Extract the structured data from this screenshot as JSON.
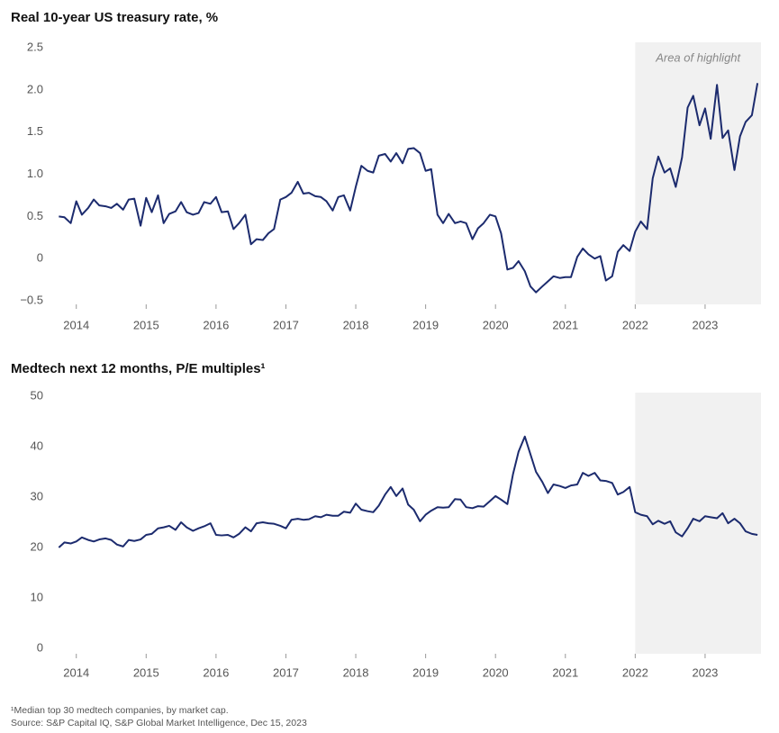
{
  "chart_data": [
    {
      "type": "line",
      "title": "Real 10-year US treasury rate, %",
      "xlim": [
        2013.72,
        2023.8
      ],
      "xticks": [
        2014,
        2015,
        2016,
        2017,
        2018,
        2019,
        2020,
        2021,
        2022,
        2023
      ],
      "ylim": [
        -0.5,
        2.5
      ],
      "yticks": [
        {
          "value": -0.5,
          "label": "−0.5"
        },
        0,
        0.5,
        {
          "value": 1,
          "label": "1.0"
        },
        1.5,
        {
          "value": 2,
          "label": "2.0"
        },
        2.5
      ],
      "grid": false,
      "highlight": {
        "x_from": 2022,
        "label": "Area of highlight"
      },
      "series": [
        {
          "color": "#1c2b6e",
          "x": [
            2013.75,
            2013.83,
            2013.92,
            2014,
            2014.08,
            2014.17,
            2014.25,
            2014.33,
            2014.42,
            2014.5,
            2014.58,
            2014.67,
            2014.75,
            2014.83,
            2014.92,
            2015,
            2015.08,
            2015.17,
            2015.25,
            2015.33,
            2015.42,
            2015.5,
            2015.58,
            2015.67,
            2015.75,
            2015.83,
            2015.92,
            2016,
            2016.08,
            2016.17,
            2016.25,
            2016.33,
            2016.42,
            2016.5,
            2016.58,
            2016.67,
            2016.75,
            2016.83,
            2016.92,
            2017,
            2017.08,
            2017.17,
            2017.25,
            2017.33,
            2017.42,
            2017.5,
            2017.58,
            2017.67,
            2017.75,
            2017.83,
            2017.92,
            2018,
            2018.08,
            2018.17,
            2018.25,
            2018.33,
            2018.42,
            2018.5,
            2018.58,
            2018.67,
            2018.75,
            2018.83,
            2018.92,
            2019,
            2019.08,
            2019.17,
            2019.25,
            2019.33,
            2019.42,
            2019.5,
            2019.58,
            2019.67,
            2019.75,
            2019.83,
            2019.92,
            2020,
            2020.08,
            2020.17,
            2020.25,
            2020.33,
            2020.42,
            2020.5,
            2020.58,
            2020.67,
            2020.75,
            2020.83,
            2020.92,
            2021,
            2021.08,
            2021.17,
            2021.25,
            2021.33,
            2021.42,
            2021.5,
            2021.58,
            2021.67,
            2021.75,
            2021.83,
            2021.92,
            2022,
            2022.08,
            2022.17,
            2022.25,
            2022.33,
            2022.42,
            2022.5,
            2022.58,
            2022.67,
            2022.75,
            2022.83,
            2022.92,
            2023,
            2023.08,
            2023.17,
            2023.25,
            2023.33,
            2023.42,
            2023.5,
            2023.58,
            2023.67,
            2023.75
          ],
          "values": [
            0.5,
            0.49,
            0.42,
            0.68,
            0.52,
            0.6,
            0.7,
            0.63,
            0.62,
            0.6,
            0.65,
            0.58,
            0.7,
            0.71,
            0.39,
            0.72,
            0.55,
            0.75,
            0.42,
            0.53,
            0.56,
            0.67,
            0.55,
            0.52,
            0.54,
            0.67,
            0.65,
            0.73,
            0.55,
            0.56,
            0.35,
            0.42,
            0.52,
            0.17,
            0.23,
            0.22,
            0.3,
            0.35,
            0.7,
            0.73,
            0.78,
            0.91,
            0.77,
            0.78,
            0.74,
            0.73,
            0.68,
            0.57,
            0.73,
            0.75,
            0.57,
            0.85,
            1.1,
            1.04,
            1.02,
            1.22,
            1.24,
            1.15,
            1.25,
            1.13,
            1.3,
            1.31,
            1.25,
            1.04,
            1.06,
            0.52,
            0.42,
            0.53,
            0.42,
            0.44,
            0.42,
            0.23,
            0.36,
            0.42,
            0.52,
            0.5,
            0.3,
            -0.13,
            -0.11,
            -0.03,
            -0.15,
            -0.33,
            -0.4,
            -0.33,
            -0.27,
            -0.21,
            -0.23,
            -0.22,
            -0.22,
            0.02,
            0.12,
            0.05,
            0,
            0.03,
            -0.26,
            -0.21,
            0.08,
            0.16,
            0.09,
            0.32,
            0.44,
            0.35,
            0.95,
            1.21,
            1.02,
            1.07,
            0.85,
            1.2,
            1.79,
            1.93,
            1.58,
            1.78,
            1.42,
            2.06,
            1.43,
            1.52,
            1.05,
            1.45,
            1.62,
            1.7,
            2.08
          ]
        }
      ]
    },
    {
      "type": "line",
      "title": "Medtech next 12 months, P/E multiples¹",
      "xlim": [
        2013.72,
        2023.8
      ],
      "xticks": [
        2014,
        2015,
        2016,
        2017,
        2018,
        2019,
        2020,
        2021,
        2022,
        2023
      ],
      "ylim": [
        0,
        50
      ],
      "yticks": [
        0,
        10,
        20,
        30,
        40,
        50
      ],
      "grid": false,
      "highlight": {
        "x_from": 2022
      },
      "series": [
        {
          "color": "#1c2b6e",
          "x": [
            2013.75,
            2013.83,
            2013.92,
            2014,
            2014.08,
            2014.17,
            2014.25,
            2014.33,
            2014.42,
            2014.5,
            2014.58,
            2014.67,
            2014.75,
            2014.83,
            2014.92,
            2015,
            2015.08,
            2015.17,
            2015.25,
            2015.33,
            2015.42,
            2015.5,
            2015.58,
            2015.67,
            2015.75,
            2015.83,
            2015.92,
            2016,
            2016.08,
            2016.17,
            2016.25,
            2016.33,
            2016.42,
            2016.5,
            2016.58,
            2016.67,
            2016.75,
            2016.83,
            2016.92,
            2017,
            2017.08,
            2017.17,
            2017.25,
            2017.33,
            2017.42,
            2017.5,
            2017.58,
            2017.67,
            2017.75,
            2017.83,
            2017.92,
            2018,
            2018.08,
            2018.17,
            2018.25,
            2018.33,
            2018.42,
            2018.5,
            2018.58,
            2018.67,
            2018.75,
            2018.83,
            2018.92,
            2019,
            2019.08,
            2019.17,
            2019.25,
            2019.33,
            2019.42,
            2019.5,
            2019.58,
            2019.67,
            2019.75,
            2019.83,
            2019.92,
            2020,
            2020.08,
            2020.17,
            2020.25,
            2020.33,
            2020.42,
            2020.5,
            2020.58,
            2020.67,
            2020.75,
            2020.83,
            2020.92,
            2021,
            2021.08,
            2021.17,
            2021.25,
            2021.33,
            2021.42,
            2021.5,
            2021.58,
            2021.67,
            2021.75,
            2021.83,
            2021.92,
            2022,
            2022.08,
            2022.17,
            2022.25,
            2022.33,
            2022.42,
            2022.5,
            2022.58,
            2022.67,
            2022.75,
            2022.83,
            2022.92,
            2023,
            2023.08,
            2023.17,
            2023.25,
            2023.33,
            2023.42,
            2023.5,
            2023.58,
            2023.67,
            2023.75
          ],
          "values": [
            20,
            21,
            20.8,
            21.2,
            22,
            21.5,
            21.2,
            21.6,
            21.8,
            21.5,
            20.6,
            20.2,
            21.5,
            21.3,
            21.6,
            22.5,
            22.7,
            23.8,
            24,
            24.3,
            23.5,
            25,
            24,
            23.3,
            23.8,
            24.2,
            24.8,
            22.5,
            22.4,
            22.5,
            22,
            22.7,
            24,
            23.2,
            24.8,
            25,
            24.8,
            24.7,
            24.3,
            23.8,
            25.5,
            25.7,
            25.5,
            25.6,
            26.2,
            26,
            26.5,
            26.3,
            26.3,
            27.1,
            26.9,
            28.7,
            27.5,
            27.2,
            27,
            28.3,
            30.5,
            32,
            30.2,
            31.7,
            28.5,
            27.5,
            25.2,
            26.5,
            27.3,
            28,
            27.9,
            28,
            29.6,
            29.5,
            28,
            27.8,
            28.2,
            28.1,
            29.2,
            30.2,
            29.5,
            28.6,
            34.5,
            39,
            42,
            38.5,
            35,
            33,
            30.8,
            32.5,
            32.2,
            31.8,
            32.3,
            32.5,
            34.8,
            34.2,
            34.8,
            33.3,
            33.2,
            32.8,
            30.5,
            31,
            32,
            27,
            26.5,
            26.2,
            24.6,
            25.3,
            24.7,
            25.2,
            23,
            22.2,
            23.8,
            25.7,
            25.2,
            26.2,
            26,
            25.8,
            26.8,
            24.8,
            25.7,
            24.8,
            23.2,
            22.7,
            22.5
          ]
        }
      ]
    }
  ],
  "notes": [
    "¹Median top 30 medtech companies, by market cap.",
    "Source: S&P Capital IQ, S&P Global Market Intelligence, Dec 15, 2023"
  ]
}
